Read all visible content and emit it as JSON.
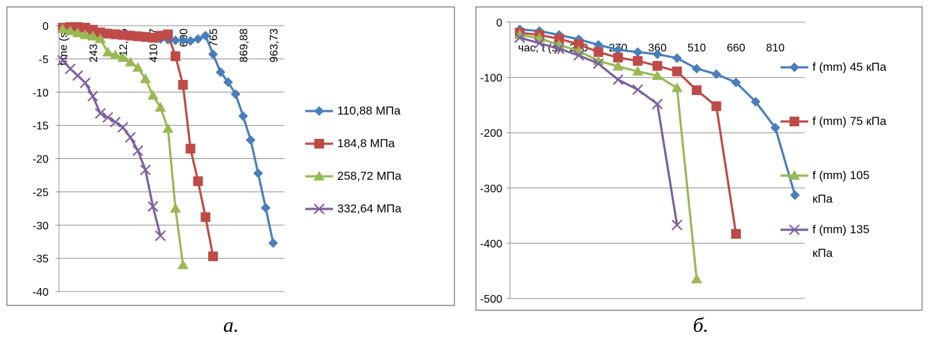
{
  "chart_data": [
    {
      "type": "line",
      "caption": "а.",
      "categories": [
        "time (s)",
        null,
        null,
        null,
        "243,29",
        null,
        null,
        null,
        "312,15",
        null,
        null,
        null,
        "410,87",
        null,
        null,
        null,
        "600",
        null,
        null,
        null,
        "765",
        null,
        null,
        null,
        "869,88",
        null,
        null,
        null,
        "963,73",
        null
      ],
      "series": [
        {
          "name": "110,88 МПа",
          "color": "#4a7ebb",
          "marker": "diamond",
          "values": [
            -0.3,
            -0.4,
            -0.5,
            -0.6,
            -0.8,
            -1.0,
            -1.1,
            -1.2,
            -1.3,
            -1.4,
            -1.5,
            -1.6,
            -1.8,
            -2.0,
            -2.1,
            -2.2,
            -2.2,
            -2.3,
            -2.0,
            -1.5,
            -4.3,
            -7.0,
            -8.5,
            -10.3,
            -13.6,
            -17.2,
            -22.2,
            -27.4,
            -32.7,
            null
          ]
        },
        {
          "name": "184,8 МПа",
          "color": "#be4b48",
          "marker": "square",
          "values": [
            -0.3,
            -0.2,
            -0.2,
            -0.3,
            -0.6,
            -1.0,
            -1.2,
            -1.3,
            -1.4,
            -1.5,
            -1.6,
            -1.7,
            -1.8,
            -1.5,
            -1.3,
            -4.6,
            -8.9,
            -18.5,
            -23.4,
            -28.8,
            -34.7,
            null,
            null,
            null,
            null,
            null,
            null,
            null,
            null,
            null
          ]
        },
        {
          "name": "258,72 МПа",
          "color": "#98b954",
          "marker": "triangle",
          "values": [
            -0.5,
            -0.8,
            -1.1,
            -1.4,
            -1.6,
            -2.0,
            -4.0,
            -4.4,
            -4.8,
            -5.5,
            -6.3,
            -8.0,
            -10.5,
            -12.3,
            -15.5,
            -27.5,
            -36,
            null,
            null,
            null,
            null,
            null,
            null,
            null,
            null,
            null,
            null,
            null,
            null,
            null
          ]
        },
        {
          "name": "332,64 МПа",
          "color": "#7d60a0",
          "marker": "x",
          "values": [
            -5.2,
            -6.5,
            -7.5,
            -8.6,
            -10.6,
            -13.2,
            -13.8,
            -14.5,
            -15.3,
            -16.8,
            -18.8,
            -21.7,
            -27.2,
            -31.6,
            null,
            null,
            null,
            null,
            null,
            null,
            null,
            null,
            null,
            null,
            null,
            null,
            null,
            null,
            null,
            null
          ]
        }
      ],
      "ylim": [
        -40,
        0
      ],
      "yticks": [
        0,
        -5,
        -10,
        -15,
        -20,
        -25,
        -30,
        -35,
        -40
      ],
      "grid": true
    },
    {
      "type": "line",
      "caption": "б.",
      "categories": [
        null,
        "час, t (s)",
        null,
        "220",
        null,
        "270",
        null,
        "360",
        null,
        "510",
        null,
        "660",
        null,
        "810",
        null
      ],
      "series": [
        {
          "name": "f (mm) 45 кПа",
          "color": "#4a7ebb",
          "marker": "diamond",
          "values": [
            -13,
            -16,
            -23,
            -31,
            -41,
            -50,
            -54,
            -58,
            -65,
            -84,
            -94,
            -109,
            -144,
            -191,
            -313
          ]
        },
        {
          "name": "f (mm) 75 кПа",
          "color": "#be4b48",
          "marker": "square",
          "values": [
            -19,
            -23,
            -30,
            -40,
            -54,
            -64,
            -70,
            -79,
            -89,
            -123,
            -152,
            -383,
            null,
            null,
            null
          ]
        },
        {
          "name": "f (mm) 105 кПа",
          "color": "#98b954",
          "marker": "triangle",
          "values": [
            -23,
            -29,
            -41,
            -52,
            -70,
            -80,
            -89,
            -97,
            -119,
            -465,
            null,
            null,
            null,
            null,
            null
          ]
        },
        {
          "name": "f (mm) 135 кПа",
          "color": "#7d60a0",
          "marker": "x",
          "values": [
            -28,
            -38,
            -48,
            -60,
            -75,
            -104,
            -122,
            -148,
            -367,
            null,
            null,
            null,
            null,
            null,
            null
          ]
        }
      ],
      "ylim": [
        -500,
        0
      ],
      "yticks": [
        0,
        -100,
        -200,
        -300,
        -400,
        -500
      ],
      "grid": true
    }
  ]
}
